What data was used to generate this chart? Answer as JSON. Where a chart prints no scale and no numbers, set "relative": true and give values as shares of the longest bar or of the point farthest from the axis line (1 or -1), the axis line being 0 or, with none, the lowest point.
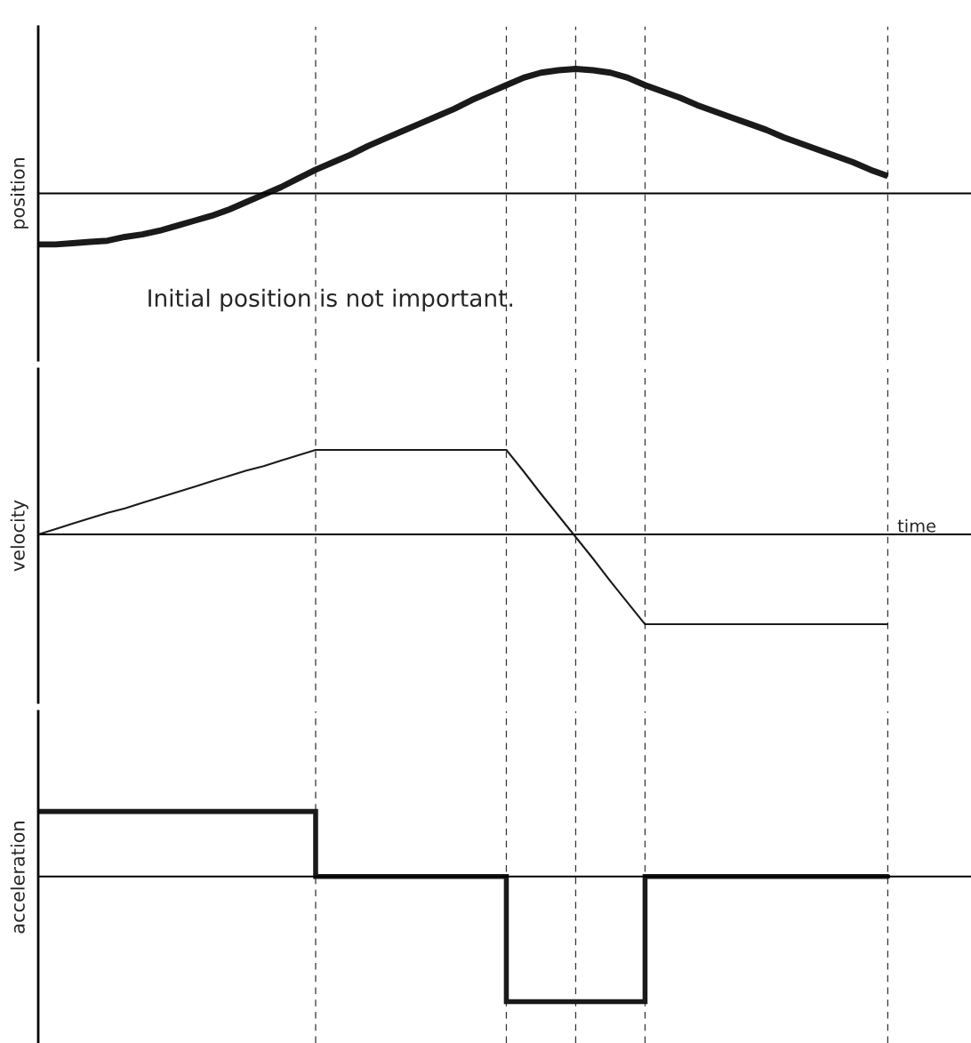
{
  "chart_data": [
    {
      "type": "line",
      "ylabel": "position",
      "relative": true,
      "categories": [
        null,
        null,
        null,
        null,
        null,
        null,
        null,
        null,
        null,
        null,
        null,
        null,
        null,
        null,
        null,
        null,
        null,
        null,
        null,
        null,
        null,
        null,
        null,
        null,
        null,
        null,
        null,
        null,
        null,
        null,
        null,
        null,
        null,
        null,
        null,
        null,
        null,
        null,
        null,
        null,
        null,
        null,
        null,
        null,
        null,
        null,
        null,
        null,
        null,
        null
      ],
      "series": [
        {
          "color": "#1a1a1a",
          "values": [
            -0.41,
            -0.41,
            -0.4,
            -0.39,
            -0.38,
            -0.35,
            -0.33,
            -0.3,
            -0.26,
            -0.22,
            -0.18,
            -0.13,
            -0.07,
            -0.01,
            0.05,
            0.12,
            0.19,
            0.25,
            0.31,
            0.38,
            0.44,
            0.5,
            0.56,
            0.62,
            0.68,
            0.75,
            0.81,
            0.87,
            0.93,
            0.97,
            0.99,
            1.0,
            0.99,
            0.97,
            0.93,
            0.87,
            0.82,
            0.77,
            0.71,
            0.66,
            0.61,
            0.56,
            0.51,
            0.45,
            0.4,
            0.35,
            0.3,
            0.25,
            0.19,
            0.14
          ]
        }
      ],
      "annotations": [
        "Initial position is not important."
      ],
      "grid": "x"
    },
    {
      "type": "line",
      "ylabel": "velocity",
      "relative": true,
      "categories": [
        null,
        null,
        null,
        null,
        null,
        null,
        null,
        null,
        null,
        null,
        null,
        null,
        null,
        null,
        null,
        null,
        null,
        null,
        null,
        null,
        null,
        null,
        null,
        null,
        null,
        null,
        null,
        null,
        null,
        null,
        null,
        null,
        null,
        null,
        null,
        null,
        null,
        null,
        null,
        null,
        null,
        null,
        null,
        null,
        null,
        null,
        null,
        null,
        null,
        null
      ],
      "series": [
        {
          "color": "#1a1a1a",
          "values": [
            0,
            0.06,
            0.12,
            0.18,
            0.24,
            0.29,
            0.35,
            0.41,
            0.47,
            0.53,
            0.59,
            0.65,
            0.71,
            0.76,
            0.82,
            0.88,
            0.94,
            0.94,
            0.94,
            0.94,
            0.94,
            0.94,
            0.94,
            0.94,
            0.94,
            0.94,
            0.94,
            0.94,
            0.7,
            0.45,
            0.21,
            -0.03,
            -0.27,
            -0.52,
            -0.76,
            -1,
            -1,
            -1,
            -1,
            -1,
            -1,
            -1,
            -1,
            -1,
            -1,
            -1,
            -1,
            -1,
            -1,
            -1
          ]
        }
      ],
      "annotations": [
        "time"
      ],
      "grid": "x"
    },
    {
      "type": "step",
      "ylabel": "acceleration",
      "relative": true,
      "categories": [
        null,
        null,
        null,
        null,
        null,
        null,
        null,
        null,
        null,
        null,
        null,
        null,
        null,
        null,
        null,
        null,
        null,
        null,
        null,
        null,
        null,
        null,
        null,
        null,
        null,
        null,
        null,
        null,
        null,
        null,
        null,
        null,
        null,
        null,
        null,
        null,
        null,
        null,
        null,
        null,
        null,
        null,
        null,
        null,
        null,
        null,
        null,
        null,
        null,
        null
      ],
      "series": [
        {
          "color": "#1a1a1a",
          "values": [
            0.52,
            0.52,
            0.52,
            0.52,
            0.52,
            0.52,
            0.52,
            0.52,
            0.52,
            0.52,
            0.52,
            0.52,
            0.52,
            0.52,
            0.52,
            0.52,
            0,
            0,
            0,
            0,
            0,
            0,
            0,
            0,
            0,
            0,
            0,
            -1,
            -1,
            -1,
            -1,
            -1,
            -1,
            -1,
            -1,
            0,
            0,
            0,
            0,
            0,
            0,
            0,
            0,
            0,
            0,
            0,
            0,
            0,
            0,
            0
          ]
        }
      ],
      "grid": "x"
    }
  ]
}
